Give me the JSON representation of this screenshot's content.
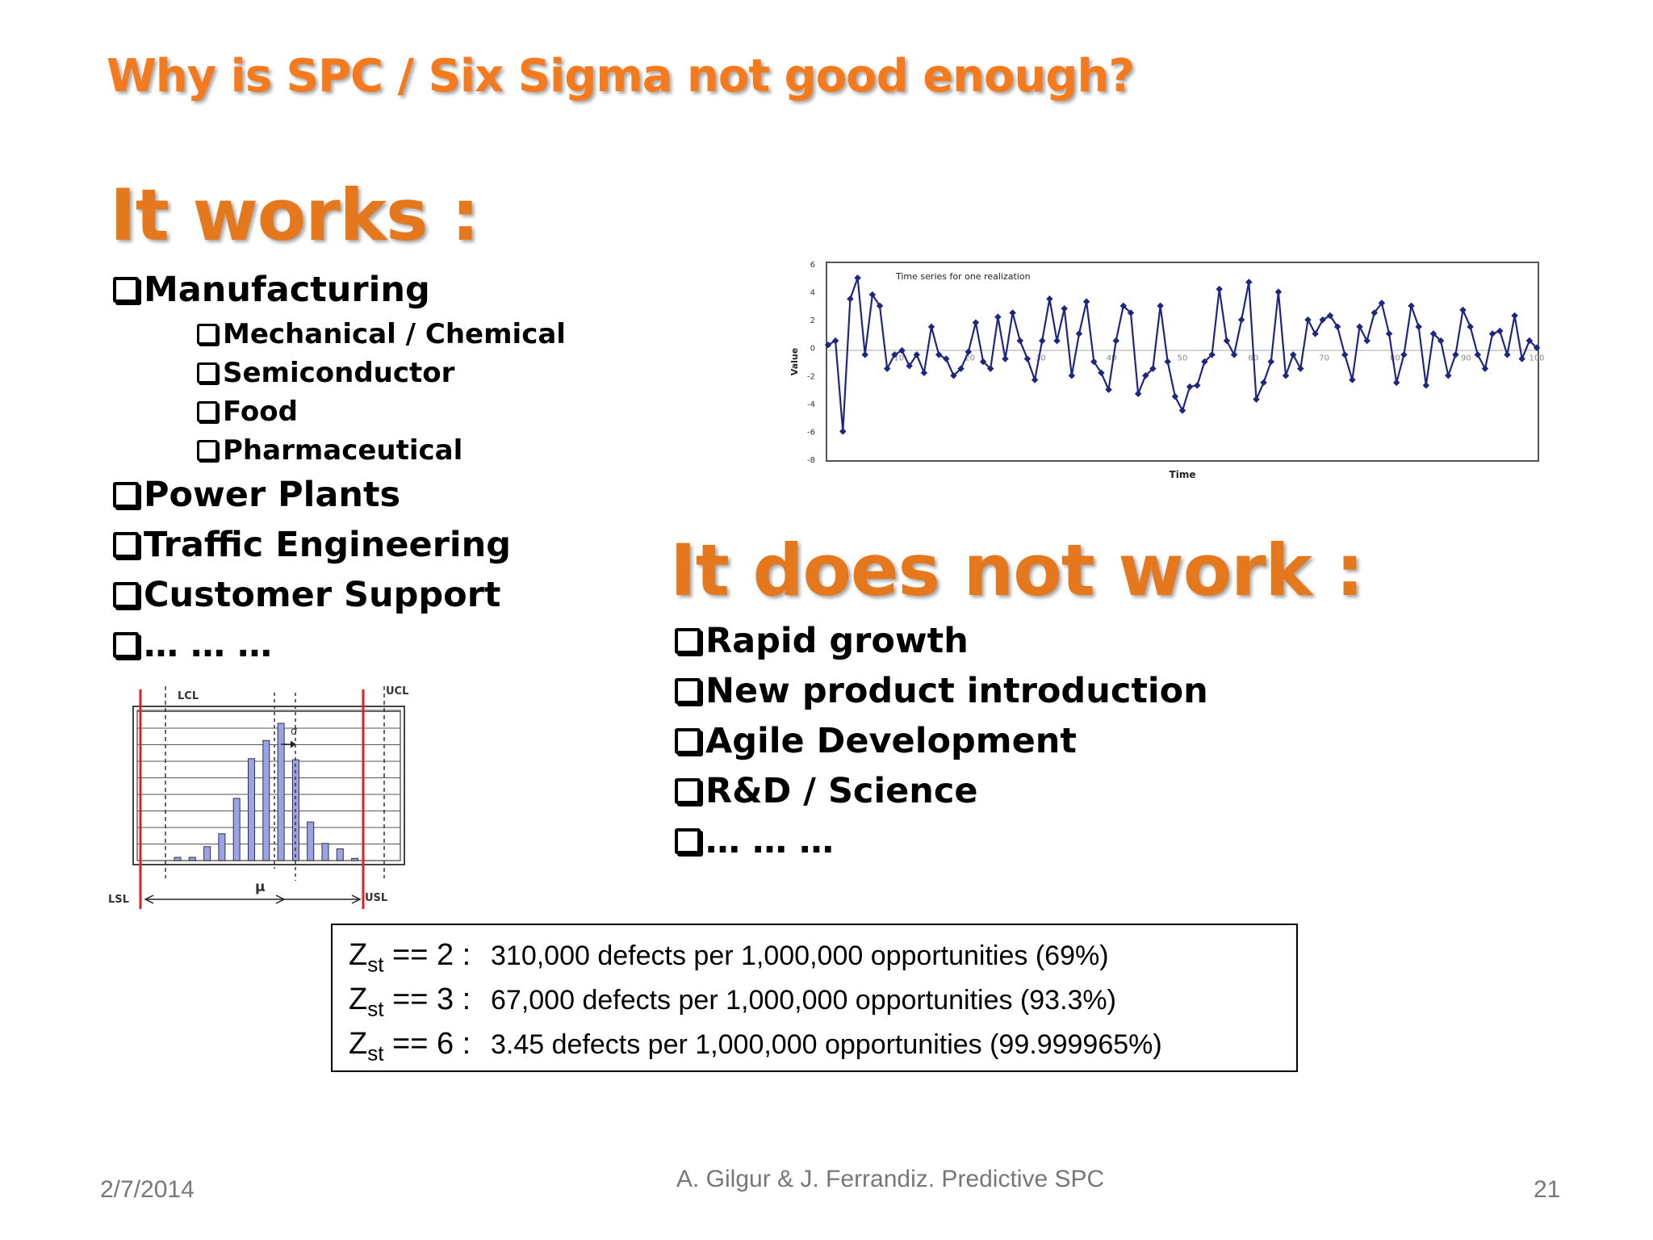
{
  "slide": {
    "title": "Why is SPC / Six Sigma not good enough?",
    "works_heading": "It works :",
    "works_items": [
      {
        "label": "Manufacturing",
        "level": 1
      },
      {
        "label": "Mechanical / Chemical",
        "level": 2
      },
      {
        "label": "Semiconductor",
        "level": 2
      },
      {
        "label": "Food",
        "level": 2
      },
      {
        "label": "Pharmaceutical",
        "level": 2
      },
      {
        "label": "Power Plants",
        "level": 1
      },
      {
        "label": "Traffic Engineering",
        "level": 1
      },
      {
        "label": "Customer Support",
        "level": 1
      },
      {
        "label": "… … …",
        "level": 1
      }
    ],
    "not_work_heading": "It does not work :",
    "not_work_items": [
      "Rapid growth",
      "New product introduction",
      "Agile Development",
      "R&D / Science",
      "… … …"
    ],
    "sigma_table": [
      {
        "z": "Z",
        "sub": "st",
        "eq": " == 2 :",
        "text": "310,000 defects per 1,000,000 opportunities (69%)"
      },
      {
        "z": "Z",
        "sub": "st",
        "eq": " == 3 :",
        "text": "67,000 defects per 1,000,000 opportunities (93.3%)"
      },
      {
        "z": "Z",
        "sub": "st",
        "eq": " == 6 :",
        "text": "3.45 defects per 1,000,000 opportunities (99.999965%)"
      }
    ],
    "footer": {
      "date": "2/7/2014",
      "author": "A. Gilgur & J. Ferrandiz.  Predictive SPC",
      "page": "21"
    }
  },
  "charts": {
    "histogram": {
      "type": "bar",
      "labels": {
        "lcl": "LCL",
        "ucl": "UCL",
        "lsl": "LSL",
        "usl": "USL",
        "mu": "μ",
        "sigma": "σ"
      },
      "values": [
        0.3,
        0.3,
        1.3,
        2.5,
        5.8,
        9.5,
        11.2,
        12.8,
        9.4,
        3.6,
        1.6,
        1.1,
        0.2
      ],
      "ymax": 14,
      "colors": {
        "bar": "#9aa3ea",
        "spec": "#e02020"
      }
    },
    "timeseries": {
      "type": "line",
      "title": "Time series for one realization",
      "xlabel": "Time",
      "ylabel": "Value",
      "xlim": [
        0,
        100
      ],
      "ylim": [
        -8,
        6
      ],
      "yticks": [
        6,
        4,
        2,
        0,
        -2,
        -4,
        -6,
        -8
      ],
      "xticks": [
        10,
        20,
        30,
        40,
        50,
        60,
        70,
        80,
        90,
        100
      ],
      "color": "#1e2680",
      "values": [
        0.2,
        0.5,
        -6.0,
        3.5,
        5.0,
        -0.5,
        3.8,
        3.0,
        -1.5,
        -0.5,
        -0.2,
        -1.3,
        -0.5,
        -1.8,
        1.5,
        -0.5,
        -0.8,
        -2.0,
        -1.5,
        -0.3,
        1.8,
        -1.0,
        -1.5,
        2.2,
        -0.8,
        2.5,
        0.5,
        -0.8,
        -2.3,
        0.5,
        3.5,
        0.5,
        2.8,
        -2.0,
        1.0,
        3.3,
        -1.0,
        -1.8,
        -3.0,
        0.5,
        3.0,
        2.5,
        -3.3,
        -2.0,
        -1.5,
        3.0,
        -1.0,
        -3.5,
        -4.5,
        -2.8,
        -2.7,
        -1.0,
        -0.5,
        4.2,
        0.5,
        -0.5,
        2.0,
        4.7,
        -3.7,
        -2.5,
        -1.0,
        4.0,
        -2.0,
        -0.5,
        -1.5,
        2.0,
        1.0,
        2.0,
        2.3,
        1.5,
        -0.5,
        -2.3,
        1.5,
        0.5,
        2.5,
        3.2,
        1.0,
        -2.5,
        -0.5,
        3.0,
        1.5,
        -2.7,
        1.0,
        0.5,
        -2.0,
        -0.5,
        2.7,
        1.5,
        -0.5,
        -1.5,
        1.0,
        1.2,
        -0.5,
        2.3,
        -0.8,
        0.5,
        0.0
      ]
    }
  }
}
